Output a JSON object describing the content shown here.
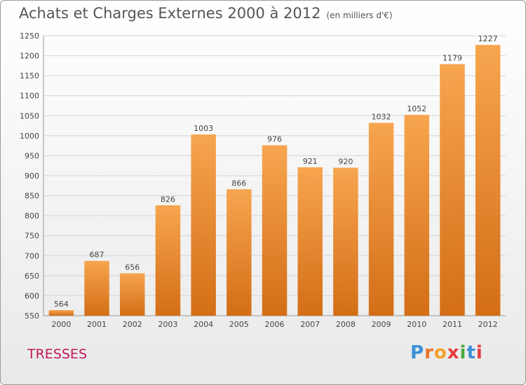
{
  "title": "Achats et Charges Externes 2000 à 2012",
  "subtitle": "(en milliers d'€)",
  "place_name": "TRESSES",
  "logo": [
    "P",
    "r",
    "o",
    "x",
    "i",
    "t",
    "i"
  ],
  "colors": {
    "bar_top": "#f7a54f",
    "bar_bottom": "#d36e16",
    "grid": "#d4d4d4",
    "text": "#444444",
    "place": "#c2185b",
    "logo": [
      "#3a8fd6",
      "#e8732a",
      "#f2a22a",
      "#e83b3b",
      "#4aa83f",
      "#3a8fd6",
      "#e83b3b"
    ]
  },
  "chart_data": {
    "type": "bar",
    "title": "Achats et Charges Externes 2000 à 2012",
    "categories": [
      "2000",
      "2001",
      "2002",
      "2003",
      "2004",
      "2005",
      "2006",
      "2007",
      "2008",
      "2009",
      "2010",
      "2011",
      "2012"
    ],
    "values": [
      564,
      687,
      656,
      826,
      1003,
      866,
      976,
      921,
      920,
      1032,
      1052,
      1179,
      1227
    ],
    "ylim": [
      550,
      1250
    ],
    "yticks": [
      550,
      600,
      650,
      700,
      750,
      800,
      850,
      900,
      950,
      1000,
      1050,
      1100,
      1150,
      1200,
      1250
    ],
    "grid": true,
    "xlabel": "",
    "ylabel": ""
  }
}
